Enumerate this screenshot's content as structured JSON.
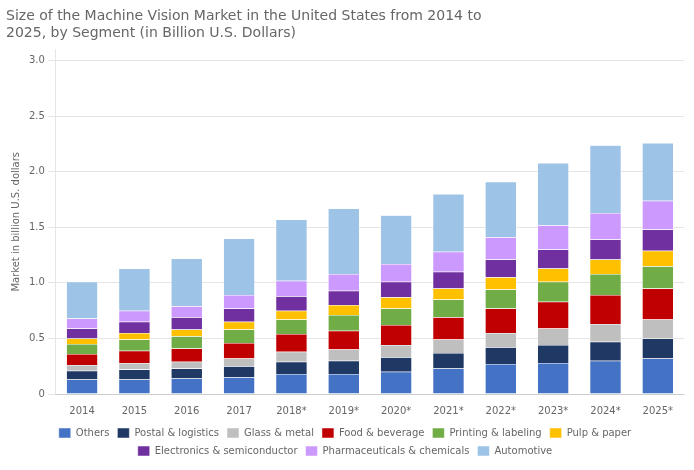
{
  "chart_data": {
    "type": "bar",
    "stacked": true,
    "title": "Size of the Machine Vision Market in the United States from 2014 to\n2025, by Segment (in Billion U.S. Dollars)",
    "ylabel": "Market in billion U.S. dollars",
    "categories": [
      "2014",
      "2015",
      "2016",
      "2017",
      "2018*",
      "2019*",
      "2020*",
      "2021*",
      "2022*",
      "2023*",
      "2024*",
      "2025*"
    ],
    "series": [
      {
        "name": "Others",
        "color": "#4472C4",
        "values": [
          0.13,
          0.13,
          0.14,
          0.15,
          0.18,
          0.18,
          0.2,
          0.23,
          0.27,
          0.28,
          0.3,
          0.32
        ]
      },
      {
        "name": "Postal & logistics",
        "color": "#1F3864",
        "values": [
          0.08,
          0.09,
          0.09,
          0.1,
          0.11,
          0.12,
          0.13,
          0.14,
          0.15,
          0.16,
          0.17,
          0.18
        ]
      },
      {
        "name": "Glass & metal",
        "color": "#BFBFBF",
        "values": [
          0.05,
          0.06,
          0.06,
          0.07,
          0.09,
          0.1,
          0.11,
          0.12,
          0.13,
          0.15,
          0.16,
          0.17
        ]
      },
      {
        "name": "Food & beverage",
        "color": "#C00000",
        "values": [
          0.1,
          0.11,
          0.12,
          0.14,
          0.16,
          0.17,
          0.18,
          0.2,
          0.22,
          0.24,
          0.26,
          0.28
        ]
      },
      {
        "name": "Printing & labeling",
        "color": "#70AD47",
        "values": [
          0.09,
          0.1,
          0.11,
          0.12,
          0.13,
          0.14,
          0.15,
          0.16,
          0.17,
          0.18,
          0.19,
          0.2
        ]
      },
      {
        "name": "Pulp & paper",
        "color": "#FFC000",
        "values": [
          0.05,
          0.06,
          0.06,
          0.07,
          0.08,
          0.09,
          0.1,
          0.1,
          0.11,
          0.12,
          0.13,
          0.14
        ]
      },
      {
        "name": "Electronics & semiconductor",
        "color": "#7030A0",
        "values": [
          0.09,
          0.1,
          0.11,
          0.12,
          0.13,
          0.13,
          0.14,
          0.15,
          0.16,
          0.17,
          0.18,
          0.19
        ]
      },
      {
        "name": "Pharmaceuticals & chemicals",
        "color": "#CC99FF",
        "values": [
          0.09,
          0.1,
          0.1,
          0.12,
          0.14,
          0.15,
          0.16,
          0.18,
          0.2,
          0.22,
          0.24,
          0.26
        ]
      },
      {
        "name": "Automotive",
        "color": "#9DC3E6",
        "values": [
          0.33,
          0.38,
          0.43,
          0.51,
          0.55,
          0.59,
          0.44,
          0.52,
          0.5,
          0.56,
          0.61,
          0.52
        ]
      }
    ],
    "ylim": [
      0,
      3.1
    ],
    "yticks": [
      0,
      0.5,
      {
        "value": 1,
        "label": "1.0"
      },
      1.5,
      {
        "value": 2,
        "label": "2.0"
      },
      2.5,
      {
        "value": 3,
        "label": "3.0"
      }
    ],
    "grid": true,
    "legend": "bottom"
  }
}
